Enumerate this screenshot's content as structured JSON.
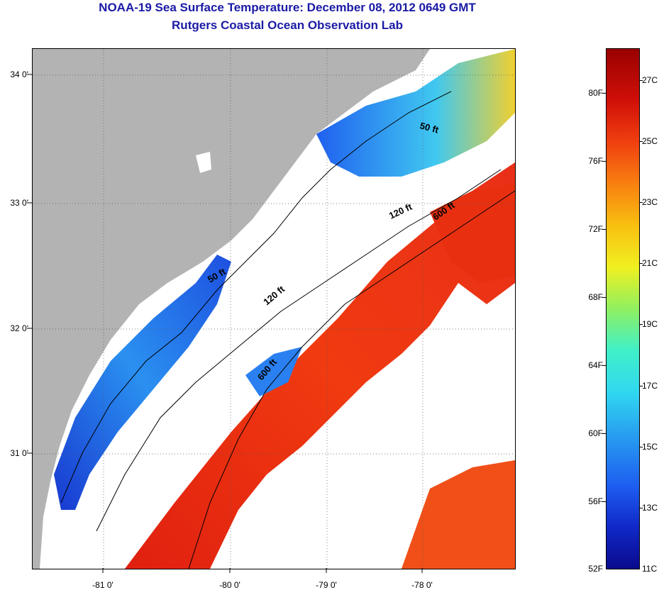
{
  "title": "NOAA-19 Sea Surface Temperature:  December 08, 2012 0649 GMT",
  "subtitle": "Rutgers Coastal Ocean Observation Lab",
  "lat_labels": [
    "34 0'",
    "33 0'",
    "32 0'",
    "31 0'"
  ],
  "lon_labels": [
    "-81 0'",
    "-80 0'",
    "-79 0'",
    "-78 0'"
  ],
  "contour_labels": [
    "50 ft",
    "50 ft",
    "120 ft",
    "120 ft",
    "600 ft",
    "600 ft"
  ],
  "colorbar": {
    "fahrenheit": [
      "80F",
      "76F",
      "72F",
      "68F",
      "64F",
      "60F",
      "56F",
      "52F"
    ],
    "celsius": [
      "27C",
      "25C",
      "23C",
      "21C",
      "19C",
      "17C",
      "15C",
      "13C",
      "11C"
    ]
  },
  "colors": {
    "title": "#1a1aa6",
    "land": "#b3b3b3",
    "cloud": "#ffffff",
    "cold": "#1028c8",
    "warm": "#e02010"
  }
}
